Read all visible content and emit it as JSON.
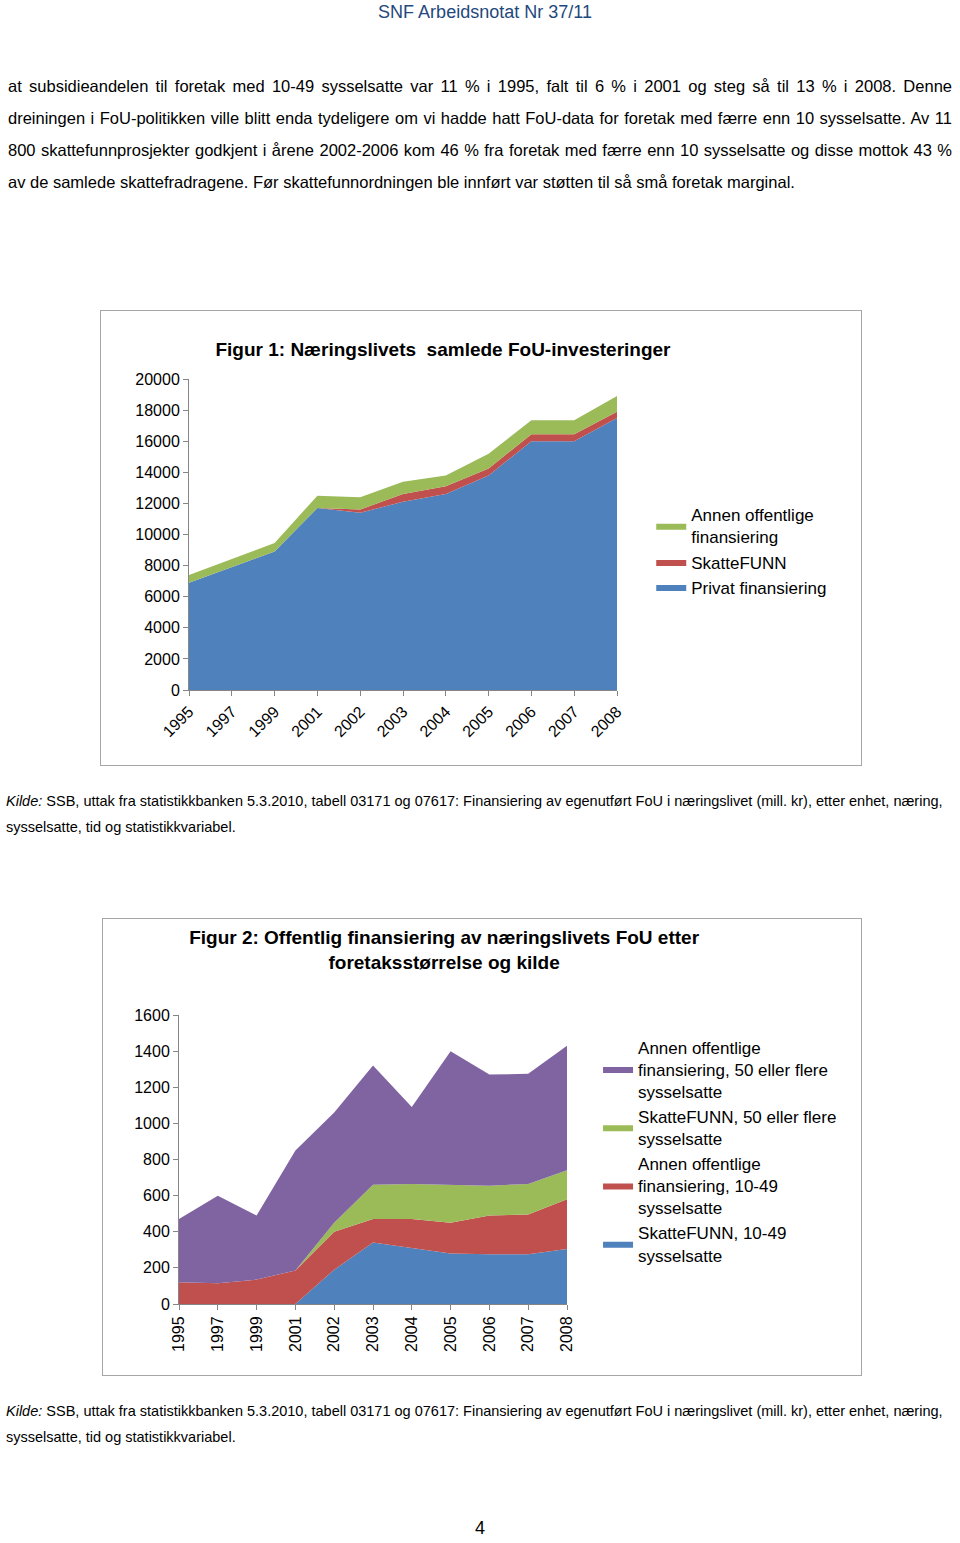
{
  "header": "SNF Arbeidsnotat Nr 37/11",
  "paragraph": "at subsidieandelen til foretak med 10-49 sysselsatte var 11 % i 1995, falt til 6 % i 2001 og steg så til 13 % i 2008. Denne dreiningen i FoU-politikken ville blitt enda tydeligere om vi hadde hatt FoU-data for foretak med færre enn 10 sysselsatte. Av 11 800 skattefunnprosjekter godkjent i årene 2002-2006 kom 46 % fra foretak med færre enn 10 sysselsatte og disse mottok 43 % av de samlede skattefradragene. Før skattefunnordningen ble innført var støtten til så små foretak marginal.",
  "chart_data": [
    {
      "type": "area",
      "stacked": true,
      "title": "Figur 1: Næringslivets  samlede FoU-investeringer",
      "categories": [
        "1995",
        "1997",
        "1999",
        "2001",
        "2002",
        "2003",
        "2004",
        "2005",
        "2006",
        "2007",
        "2008"
      ],
      "series": [
        {
          "name": "Privat finansiering",
          "color": "#4F81BD",
          "values": [
            6900,
            7900,
            8900,
            11700,
            11400,
            12100,
            12600,
            13800,
            16000,
            16000,
            17500
          ]
        },
        {
          "name": "SkatteFUNN",
          "color": "#C0504D",
          "values": [
            0,
            0,
            0,
            0,
            200,
            500,
            500,
            450,
            450,
            450,
            400
          ]
        },
        {
          "name": "Annen offentlige finansiering",
          "color": "#9BBB59",
          "values": [
            500,
            500,
            550,
            800,
            800,
            800,
            700,
            950,
            900,
            900,
            1000
          ]
        }
      ],
      "ylim": [
        0,
        20000
      ],
      "yticks": [
        0,
        2000,
        4000,
        6000,
        8000,
        10000,
        12000,
        14000,
        16000,
        18000,
        20000
      ],
      "grid": false,
      "legend": "right"
    },
    {
      "type": "area",
      "stacked": true,
      "title": "Figur 2: Offentlig finansiering av næringslivets FoU etter foretaksstørrelse og kilde",
      "categories": [
        "1995",
        "1997",
        "1999",
        "2001",
        "2002",
        "2003",
        "2004",
        "2005",
        "2006",
        "2007",
        "2008"
      ],
      "series": [
        {
          "name": "SkatteFUNN, 10-49 sysselsatte",
          "color": "#4F81BD",
          "values": [
            0,
            0,
            0,
            0,
            190,
            340,
            310,
            280,
            275,
            275,
            305
          ]
        },
        {
          "name": "Annen offentlige finansiering, 10-49 sysselsatte",
          "color": "#C0504D",
          "values": [
            120,
            115,
            135,
            185,
            210,
            130,
            160,
            170,
            215,
            220,
            275
          ]
        },
        {
          "name": "SkatteFUNN, 50 eller flere sysselsatte",
          "color": "#9BBB59",
          "values": [
            0,
            0,
            0,
            0,
            50,
            190,
            195,
            210,
            165,
            170,
            160
          ]
        },
        {
          "name": "Annen offentlige finansiering, 50 eller flere sysselsatte",
          "color": "#8064A2",
          "values": [
            350,
            485,
            355,
            665,
            610,
            660,
            425,
            740,
            615,
            610,
            690
          ]
        }
      ],
      "ylim": [
        0,
        1600
      ],
      "yticks": [
        0,
        200,
        400,
        600,
        800,
        1000,
        1200,
        1400,
        1600
      ],
      "grid": false,
      "legend": "right"
    }
  ],
  "sources": [
    {
      "label": "Kilde:",
      "text": "SSB, uttak fra statistikkbanken 5.3.2010, tabell 03171 og 07617: Finansiering av egenutført FoU i næringslivet (mill. kr), etter enhet, næring, sysselsatte, tid og statistikkvariabel."
    },
    {
      "label": "Kilde:",
      "text": "SSB, uttak fra statistikkbanken 5.3.2010, tabell 03171 og 07617: Finansiering av egenutført FoU i næringslivet (mill. kr), etter enhet, næring, sysselsatte, tid og statistikkvariabel."
    }
  ],
  "page_number": 4
}
